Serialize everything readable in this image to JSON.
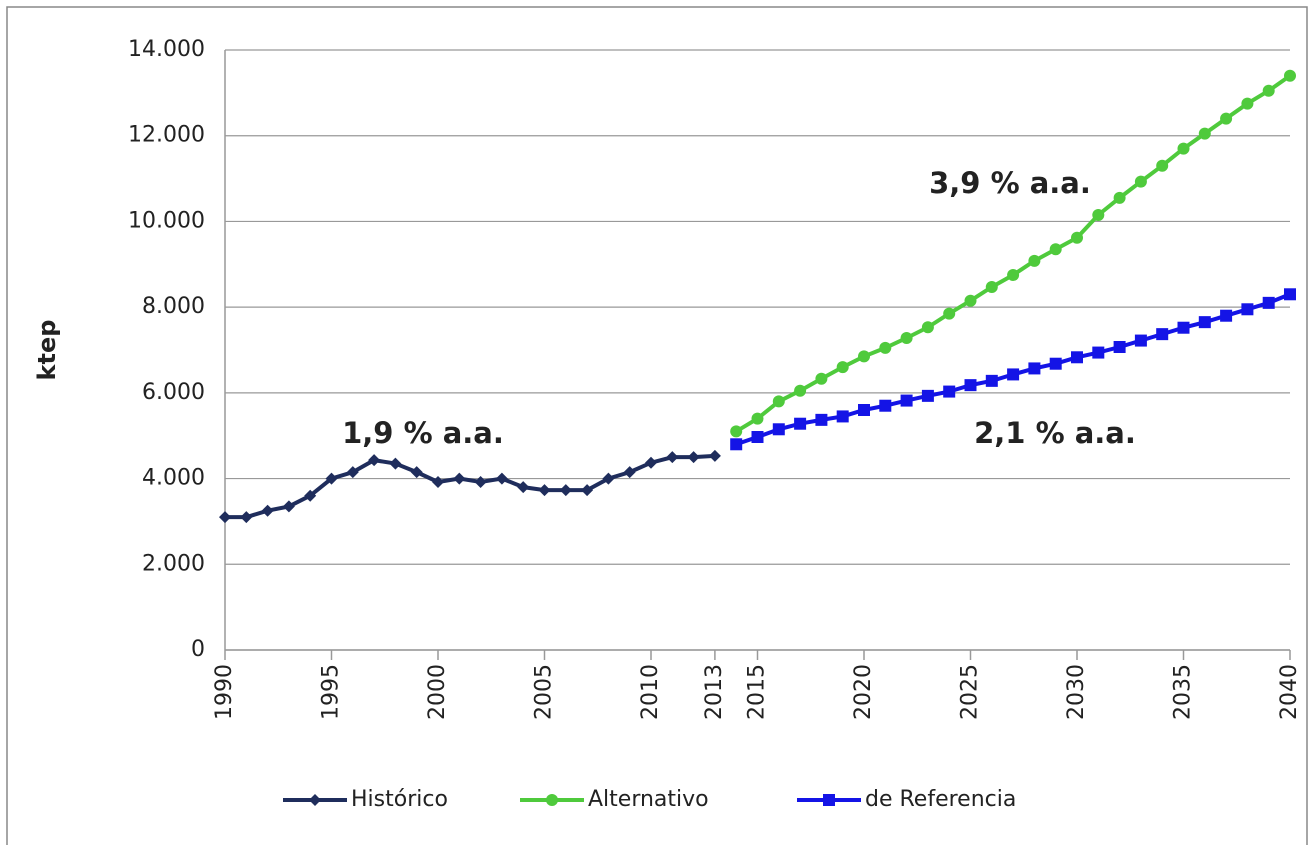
{
  "chart_data": {
    "type": "line",
    "ylabel": "ktep",
    "xlim": [
      1990,
      2040
    ],
    "xticks": [
      1990,
      1995,
      2000,
      2005,
      2010,
      2013,
      2015,
      2020,
      2025,
      2030,
      2035,
      2040
    ],
    "ylim": [
      0,
      14000
    ],
    "yticks": [
      {
        "value": 0,
        "label": "0"
      },
      {
        "value": 2000,
        "label": "2.000"
      },
      {
        "value": 4000,
        "label": "4.000"
      },
      {
        "value": 6000,
        "label": "6.000"
      },
      {
        "value": 8000,
        "label": "8.000"
      },
      {
        "value": 10000,
        "label": "10.000"
      },
      {
        "value": 12000,
        "label": "12.000"
      },
      {
        "value": 14000,
        "label": "14.000"
      }
    ],
    "grid": true,
    "legend": "bottom",
    "series": [
      {
        "name": "Histórico",
        "color": "#1f2d5c",
        "marker": "diamond",
        "x": [
          1990,
          1991,
          1992,
          1993,
          1994,
          1995,
          1996,
          1997,
          1998,
          1999,
          2000,
          2001,
          2002,
          2003,
          2004,
          2005,
          2006,
          2007,
          2008,
          2009,
          2010,
          2011,
          2012,
          2013
        ],
        "values": [
          3100,
          3100,
          3250,
          3350,
          3600,
          4000,
          4150,
          4430,
          4350,
          4150,
          3920,
          4000,
          3920,
          4000,
          3800,
          3730,
          3730,
          3730,
          4000,
          4150,
          4370,
          4500,
          4500,
          4530
        ]
      },
      {
        "name": "Alternativo",
        "color": "#4fca3c",
        "marker": "circle",
        "x": [
          2014,
          2015,
          2016,
          2017,
          2018,
          2019,
          2020,
          2021,
          2022,
          2023,
          2024,
          2025,
          2026,
          2027,
          2028,
          2029,
          2030,
          2031,
          2032,
          2033,
          2034,
          2035,
          2036,
          2037,
          2038,
          2039,
          2040
        ],
        "values": [
          5100,
          5400,
          5800,
          6050,
          6330,
          6600,
          6850,
          7050,
          7280,
          7530,
          7850,
          8150,
          8470,
          8750,
          9080,
          9350,
          9620,
          10150,
          10550,
          10930,
          11300,
          11700,
          12050,
          12400,
          12750,
          13050,
          13400
        ]
      },
      {
        "name": "de Referencia",
        "color": "#1414e6",
        "marker": "square",
        "x": [
          2014,
          2015,
          2016,
          2017,
          2018,
          2019,
          2020,
          2021,
          2022,
          2023,
          2024,
          2025,
          2026,
          2027,
          2028,
          2029,
          2030,
          2031,
          2032,
          2033,
          2034,
          2035,
          2036,
          2037,
          2038,
          2039,
          2040
        ],
        "values": [
          4800,
          4970,
          5150,
          5280,
          5370,
          5450,
          5600,
          5700,
          5820,
          5930,
          6030,
          6180,
          6280,
          6430,
          6570,
          6680,
          6830,
          6940,
          7070,
          7220,
          7370,
          7520,
          7650,
          7800,
          7950,
          8100,
          8300
        ]
      }
    ],
    "annotations": [
      {
        "text": "1,9 % a.a.",
        "color": "#35358f"
      },
      {
        "text": "3,9 % a.a.",
        "color": "#22a022"
      },
      {
        "text": "2,1 % a.a.",
        "color": "#3535cc"
      }
    ]
  }
}
